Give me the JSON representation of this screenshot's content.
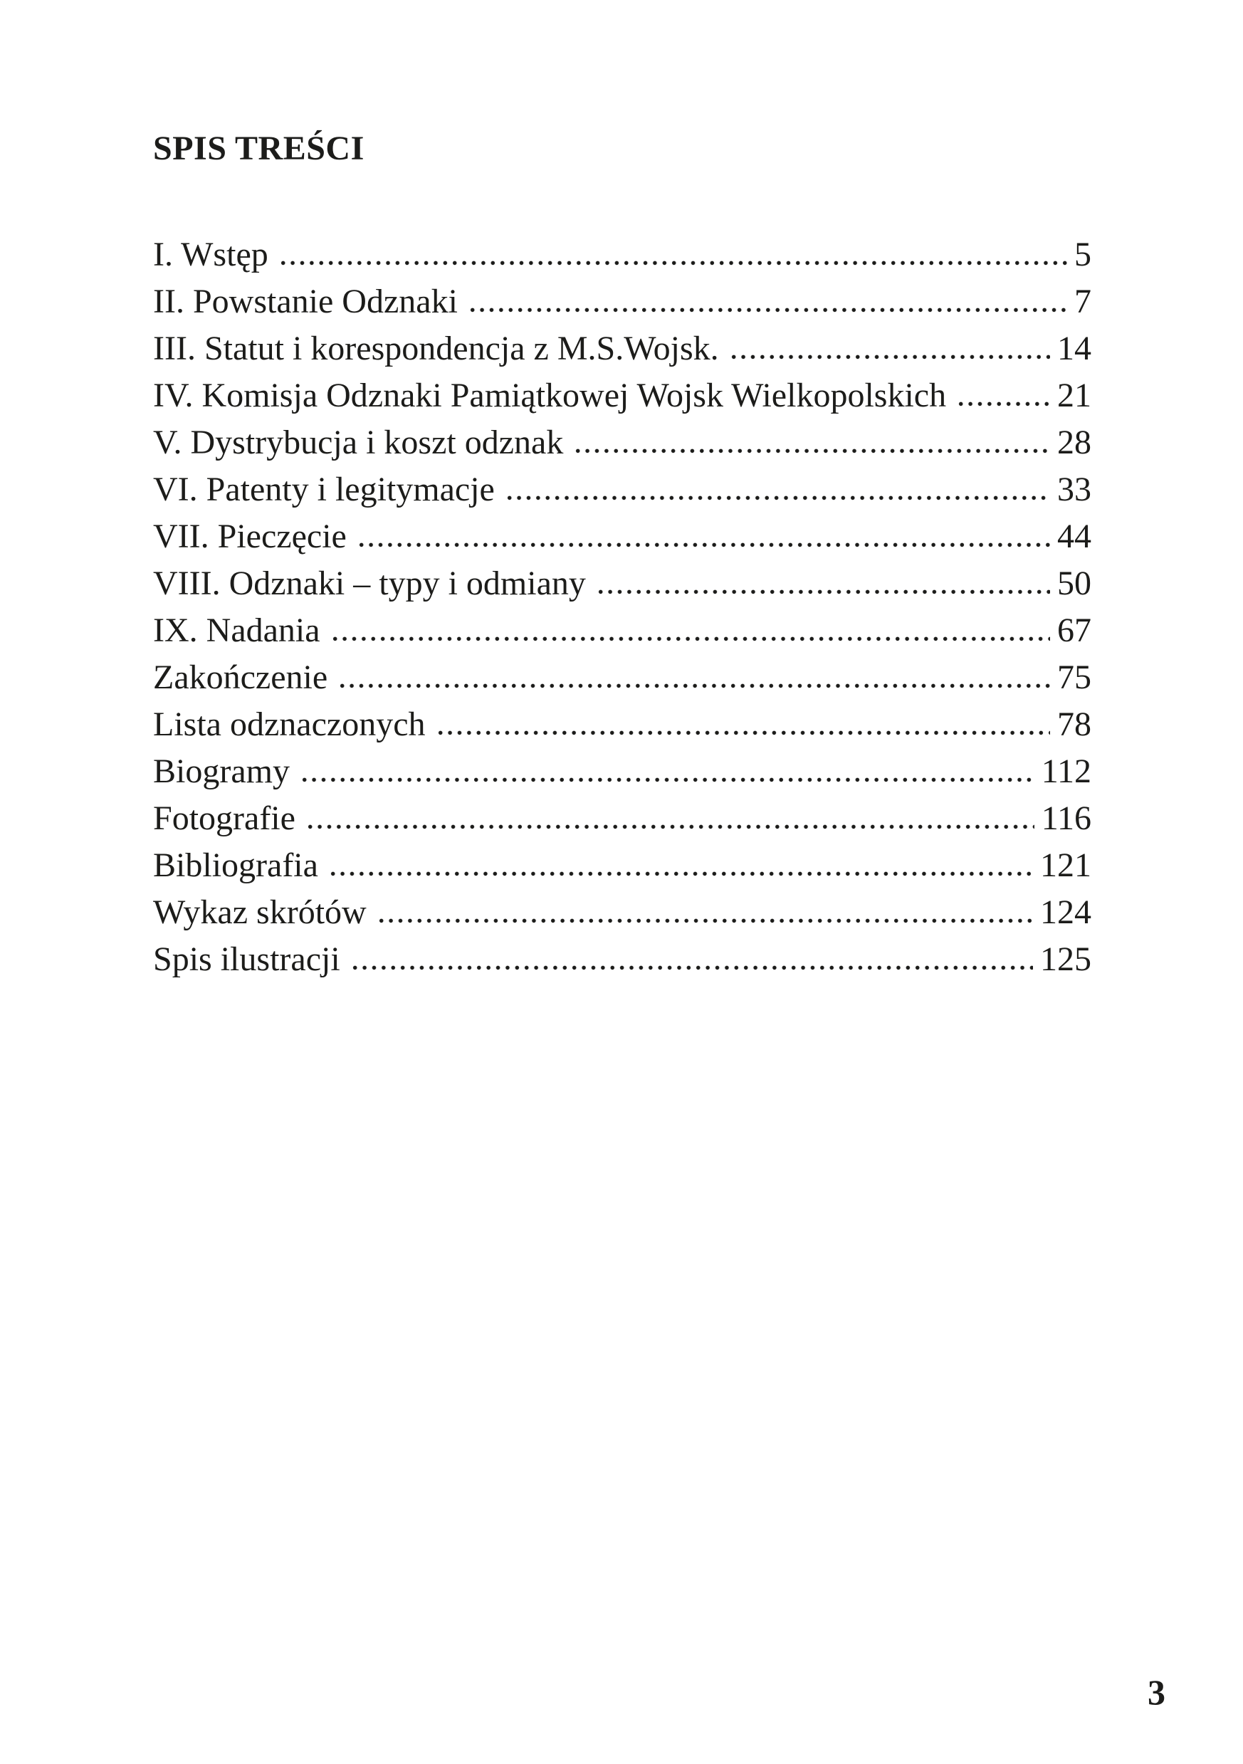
{
  "document": {
    "title": "SPIS TREŚCI",
    "folio": "3"
  },
  "toc": {
    "entries": [
      {
        "label": "I. Wstęp",
        "page": "5"
      },
      {
        "label": "II. Powstanie Odznaki",
        "page": "7"
      },
      {
        "label": "III. Statut i korespondencja z M.S.Wojsk.",
        "page": "14"
      },
      {
        "label": "IV. Komisja Odznaki Pamiątkowej Wojsk Wielkopolskich",
        "page": "21"
      },
      {
        "label": "V. Dystrybucja i koszt odznak",
        "page": "28"
      },
      {
        "label": "VI. Patenty i legitymacje",
        "page": "33"
      },
      {
        "label": "VII. Pieczęcie",
        "page": "44"
      },
      {
        "label": "VIII. Odznaki – typy i odmiany",
        "page": "50"
      },
      {
        "label": "IX. Nadania",
        "page": "67"
      },
      {
        "label": "Zakończenie",
        "page": "75"
      },
      {
        "label": "Lista odznaczonych",
        "page": "78"
      },
      {
        "label": "Biogramy",
        "page": "112"
      },
      {
        "label": "Fotografie",
        "page": "116"
      },
      {
        "label": "Bibliografia",
        "page": "121"
      },
      {
        "label": "Wykaz skrótów",
        "page": "124"
      },
      {
        "label": "Spis ilustracji",
        "page": "125"
      }
    ]
  }
}
